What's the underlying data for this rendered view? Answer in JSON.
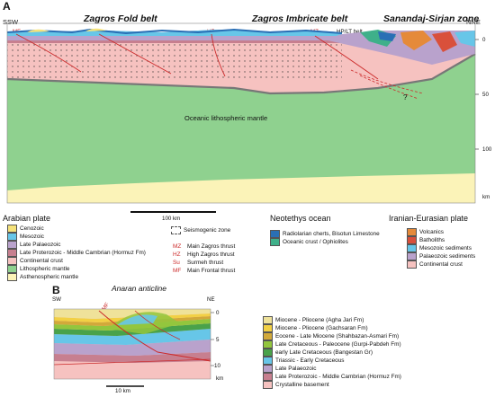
{
  "panel_a": {
    "letter": "A",
    "left_dir": "SSW",
    "right_dir": "NNE",
    "regions": [
      "Zagros Fold belt",
      "Zagros Imbricate belt",
      "Sanandaj-Sirjan zone"
    ],
    "fault_labels": [
      "MF",
      "Su",
      "HZ",
      "MZ"
    ],
    "hp_label": "HP/LT belt",
    "mantle_label": "Oceanic lithospheric mantle",
    "question_mark": "?",
    "depth_ticks": [
      "0",
      "50",
      "100",
      "km"
    ],
    "scale_label": "100 km",
    "legend_titles": [
      "Arabian plate",
      "Neotethys ocean",
      "Iranian-Eurasian plate"
    ],
    "arabian_legend": [
      {
        "label": "Cenozoic",
        "color": "#f5e27a"
      },
      {
        "label": "Mesozoic",
        "color": "#67c6e8"
      },
      {
        "label": "Late Palaeozoic",
        "color": "#b9a2cc"
      },
      {
        "label": "Late Proterozoic - Middle Cambrian (Hormuz Fm)",
        "color": "#c77f8f"
      },
      {
        "label": "Continental crust",
        "color": "#f6c2c0"
      },
      {
        "label": "Lithospheric mantle",
        "color": "#8fd18f"
      },
      {
        "label": "Asthenospheric mantle",
        "color": "#fbf3b8"
      }
    ],
    "seismo_label": "Seismogenic zone",
    "thrusts": [
      {
        "abbr": "MZ",
        "label": "Main Zagros thrust"
      },
      {
        "abbr": "HZ",
        "label": "High Zagros thrust"
      },
      {
        "abbr": "Su",
        "label": "Surmeh thrust"
      },
      {
        "abbr": "MF",
        "label": "Main Frontal thrust"
      }
    ],
    "neotethys_legend": [
      {
        "label": "Radiolarian cherts, Bisotun Limestone",
        "color": "#2a6fb5"
      },
      {
        "label": "Oceanic crust / Ophiolites",
        "color": "#3fb08a"
      }
    ],
    "iranian_legend": [
      {
        "label": "Volcanics",
        "color": "#e58a3a"
      },
      {
        "label": "Batholiths",
        "color": "#d9503b"
      },
      {
        "label": "Mesozoic sediments",
        "color": "#67c6e8"
      },
      {
        "label": "Palaeozoic sediments",
        "color": "#b9a2cc"
      },
      {
        "label": "Continental crust",
        "color": "#f6c2c0"
      }
    ]
  },
  "panel_b": {
    "letter": "B",
    "title": "Anaran anticline",
    "left_dir": "SW",
    "right_dir": "NE",
    "fault_label": "MF",
    "depth_ticks": [
      "0",
      "5",
      "10",
      "km"
    ],
    "scale_label": "10 km",
    "legend": [
      {
        "label": "Miocene - Pliocene (Agha Jari Fm)",
        "color": "#efe29a"
      },
      {
        "label": "Miocene - Pliocene (Gachsaran Fm)",
        "color": "#f2d044"
      },
      {
        "label": "Eocene - Late Miocene (Shahbazan-Asmari Fm)",
        "color": "#d2a93a"
      },
      {
        "label": "Late Cretaceous - Paleocene (Gurpi-Pabdeh Fm)",
        "color": "#93c63d"
      },
      {
        "label": "early Late Cretaceous (Bangestan Gr)",
        "color": "#49a24a"
      },
      {
        "label": "Triassic - Early Cretaceous",
        "color": "#67c6e8"
      },
      {
        "label": "Late Palaeozoic",
        "color": "#b9a2cc"
      },
      {
        "label": "Late Proterozoic - Middle Cambrian (Hormuz Fm)",
        "color": "#c77f8f"
      },
      {
        "label": "Crystalline basement",
        "color": "#f6c2c0"
      }
    ]
  }
}
